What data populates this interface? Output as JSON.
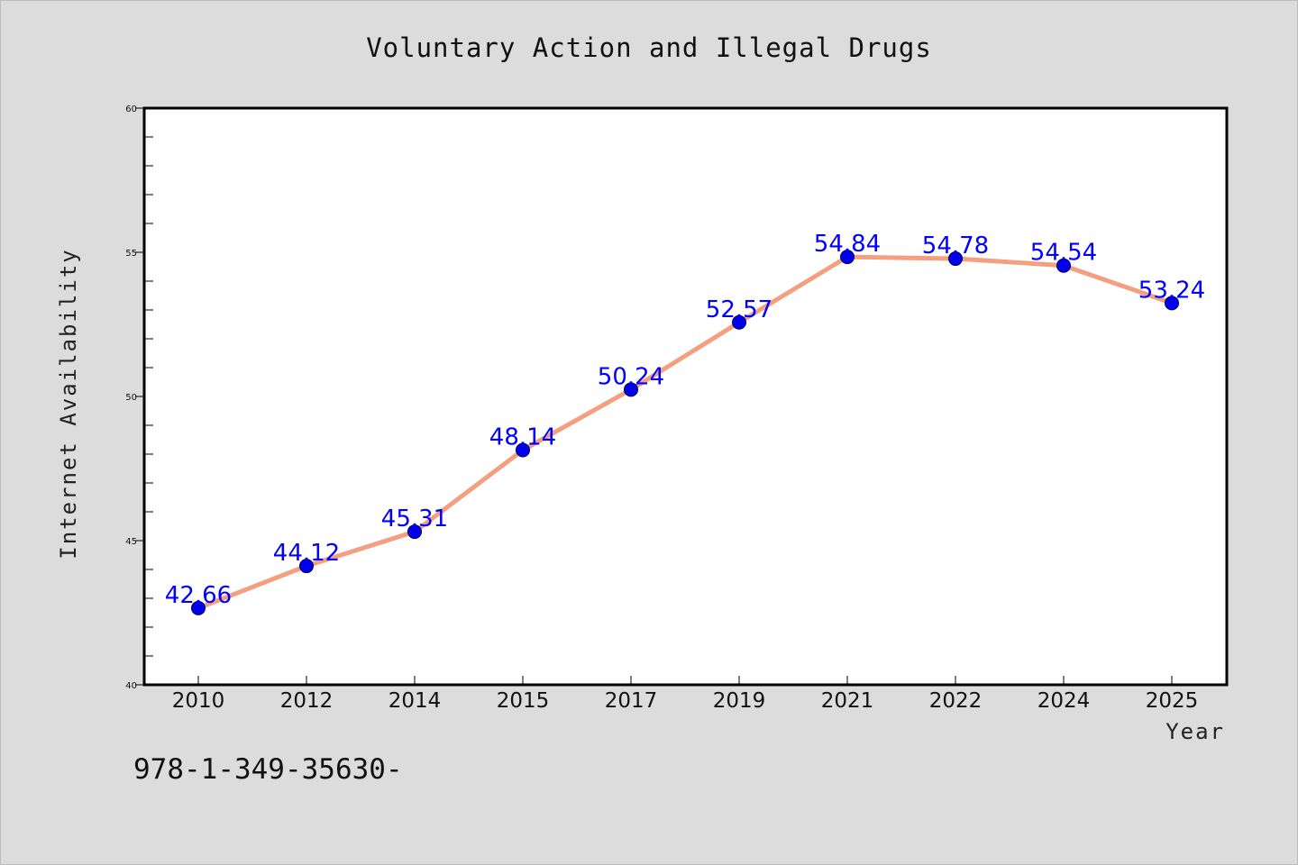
{
  "chart_data": {
    "type": "line",
    "title": "Voluntary Action and Illegal Drugs",
    "xlabel": "Year",
    "ylabel": "Internet Availability",
    "categories": [
      "2010",
      "2012",
      "2014",
      "2015",
      "2017",
      "2019",
      "2021",
      "2022",
      "2024",
      "2025"
    ],
    "series": [
      {
        "values": [
          42.66,
          44.12,
          45.31,
          48.14,
          50.24,
          52.57,
          54.84,
          54.78,
          54.54,
          53.24
        ],
        "labels": [
          "42.66",
          "44.12",
          "45.31",
          "48.14",
          "50.24",
          "52.57",
          "54.84",
          "54.78",
          "54.54",
          "53.24"
        ]
      }
    ],
    "ylim": [
      40,
      60
    ],
    "yticks": [
      40,
      45,
      50,
      55,
      60
    ],
    "ytick_labels": [
      "40",
      "45",
      "50",
      "55",
      "60"
    ],
    "yminor_step": 1,
    "grid": false,
    "colors": {
      "line": "#f4a080",
      "marker": "#0000ee",
      "data_label": "#0000ff",
      "plot_bg": "#ffffff",
      "page_bg": "#dcdcdc"
    }
  },
  "footer": {
    "code": "978-1-349-35630-"
  }
}
